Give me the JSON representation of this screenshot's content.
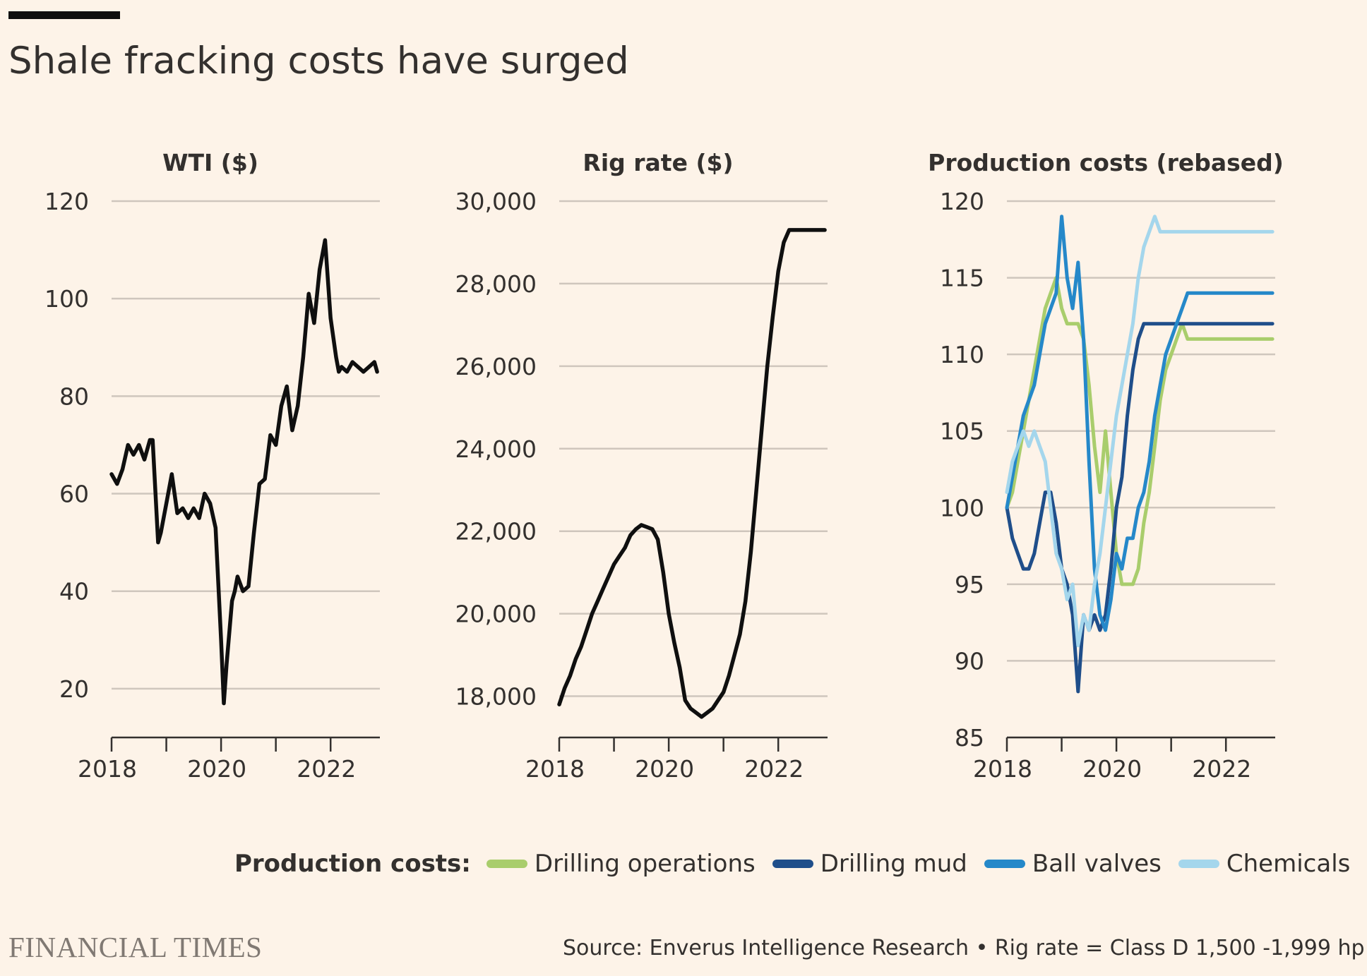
{
  "title": "Shale fracking costs have surged",
  "legend": {
    "label": "Production costs:",
    "items": [
      {
        "name": "Drilling operations",
        "color": "#a9cd6c"
      },
      {
        "name": "Drilling mud",
        "color": "#1f4e8a"
      },
      {
        "name": "Ball valves",
        "color": "#2588c9"
      },
      {
        "name": "Chemicals",
        "color": "#a4d6ec"
      }
    ]
  },
  "source": "Source: Enverus Intelligence Research • Rig rate = Class D 1,500 -1,999 hp",
  "brand": "FINANCIAL TIMES",
  "chart_data": [
    {
      "type": "line",
      "title": "WTI ($)",
      "ylim": [
        10,
        120
      ],
      "yticks": [
        20,
        40,
        60,
        80,
        100,
        120
      ],
      "ytick_labels": [
        "20",
        "40",
        "60",
        "80",
        "100",
        "120"
      ],
      "xlim": [
        2018,
        2022.9
      ],
      "xticks": [
        2018,
        2020,
        2022
      ],
      "xtick_labels": [
        "2018",
        "2020",
        "2022"
      ],
      "minor_xticks": [
        2019,
        2021
      ],
      "series": [
        {
          "name": "WTI",
          "color": "#0f0f0f",
          "x": [
            2018.0,
            2018.1,
            2018.2,
            2018.3,
            2018.4,
            2018.5,
            2018.6,
            2018.7,
            2018.75,
            2018.85,
            2018.9,
            2019.0,
            2019.1,
            2019.2,
            2019.3,
            2019.4,
            2019.5,
            2019.6,
            2019.7,
            2019.8,
            2019.9,
            2020.0,
            2020.05,
            2020.1,
            2020.2,
            2020.25,
            2020.3,
            2020.4,
            2020.5,
            2020.6,
            2020.7,
            2020.8,
            2020.9,
            2021.0,
            2021.1,
            2021.2,
            2021.3,
            2021.4,
            2021.5,
            2021.6,
            2021.7,
            2021.8,
            2021.9,
            2022.0,
            2022.1,
            2022.15,
            2022.2,
            2022.3,
            2022.4,
            2022.5,
            2022.6,
            2022.7,
            2022.8,
            2022.85
          ],
          "y": [
            64,
            62,
            65,
            70,
            68,
            70,
            67,
            71,
            71,
            50,
            52,
            58,
            64,
            56,
            57,
            55,
            57,
            55,
            60,
            58,
            53,
            30,
            17,
            25,
            38,
            40,
            43,
            40,
            41,
            52,
            62,
            63,
            72,
            70,
            78,
            82,
            73,
            78,
            88,
            101,
            95,
            106,
            112,
            96,
            88,
            85,
            86,
            85,
            87,
            86,
            85,
            86,
            87,
            85
          ]
        }
      ]
    },
    {
      "type": "line",
      "title": "Rig rate ($)",
      "ylim": [
        17000,
        30000
      ],
      "yticks": [
        18000,
        20000,
        22000,
        24000,
        26000,
        28000,
        30000
      ],
      "ytick_labels": [
        "18,000",
        "20,000",
        "22,000",
        "24,000",
        "26,000",
        "28,000",
        "30,000"
      ],
      "xlim": [
        2018,
        2022.9
      ],
      "xticks": [
        2018,
        2020,
        2022
      ],
      "xtick_labels": [
        "2018",
        "2020",
        "2022"
      ],
      "minor_xticks": [
        2019,
        2021
      ],
      "series": [
        {
          "name": "Rig rate",
          "color": "#0f0f0f",
          "x": [
            2018.0,
            2018.1,
            2018.2,
            2018.3,
            2018.4,
            2018.5,
            2018.6,
            2018.7,
            2018.8,
            2018.9,
            2019.0,
            2019.1,
            2019.2,
            2019.3,
            2019.4,
            2019.5,
            2019.6,
            2019.7,
            2019.8,
            2019.9,
            2020.0,
            2020.1,
            2020.2,
            2020.3,
            2020.4,
            2020.5,
            2020.6,
            2020.7,
            2020.8,
            2020.9,
            2021.0,
            2021.1,
            2021.2,
            2021.3,
            2021.4,
            2021.5,
            2021.6,
            2021.7,
            2021.8,
            2021.9,
            2022.0,
            2022.1,
            2022.2,
            2022.3,
            2022.4,
            2022.5,
            2022.6,
            2022.7,
            2022.8,
            2022.85
          ],
          "y": [
            17800,
            18200,
            18500,
            18900,
            19200,
            19600,
            20000,
            20300,
            20600,
            20900,
            21200,
            21400,
            21600,
            21900,
            22050,
            22150,
            22100,
            22050,
            21800,
            21000,
            20000,
            19300,
            18700,
            17900,
            17700,
            17600,
            17500,
            17600,
            17700,
            17900,
            18100,
            18500,
            19000,
            19500,
            20300,
            21500,
            23000,
            24500,
            26000,
            27200,
            28300,
            29000,
            29300,
            29300,
            29300,
            29300,
            29300,
            29300,
            29300,
            29300
          ]
        }
      ]
    },
    {
      "type": "line",
      "title": "Production costs (rebased)",
      "ylim": [
        85,
        120
      ],
      "yticks": [
        85,
        90,
        95,
        100,
        105,
        110,
        115,
        120
      ],
      "ytick_labels": [
        "85",
        "90",
        "95",
        "100",
        "105",
        "110",
        "115",
        "120"
      ],
      "xlim": [
        2018,
        2022.9
      ],
      "xticks": [
        2018,
        2020,
        2022
      ],
      "xtick_labels": [
        "2018",
        "2020",
        "2022"
      ],
      "minor_xticks": [
        2019,
        2021
      ],
      "series": [
        {
          "name": "Drilling operations",
          "color": "#a9cd6c",
          "x": [
            2018.0,
            2018.1,
            2018.2,
            2018.3,
            2018.4,
            2018.5,
            2018.6,
            2018.7,
            2018.8,
            2018.9,
            2019.0,
            2019.1,
            2019.2,
            2019.3,
            2019.4,
            2019.5,
            2019.6,
            2019.7,
            2019.8,
            2019.9,
            2020.0,
            2020.1,
            2020.2,
            2020.3,
            2020.4,
            2020.5,
            2020.6,
            2020.7,
            2020.8,
            2020.9,
            2021.0,
            2021.1,
            2021.2,
            2021.3,
            2021.4,
            2021.5,
            2021.6,
            2021.7,
            2021.8,
            2021.9,
            2022.0,
            2022.1,
            2022.2,
            2022.3,
            2022.4,
            2022.5,
            2022.6,
            2022.7,
            2022.8,
            2022.85
          ],
          "y": [
            100,
            101,
            103,
            105,
            107,
            109,
            111,
            113,
            114,
            115,
            113,
            112,
            112,
            112,
            111,
            108,
            104,
            101,
            105,
            101,
            97,
            95,
            95,
            95,
            96,
            99,
            101,
            104,
            107,
            109,
            110,
            111,
            112,
            111,
            111,
            111,
            111,
            111,
            111,
            111,
            111,
            111,
            111,
            111,
            111,
            111,
            111,
            111,
            111,
            111
          ]
        },
        {
          "name": "Drilling mud",
          "color": "#1f4e8a",
          "x": [
            2018.0,
            2018.1,
            2018.2,
            2018.3,
            2018.4,
            2018.5,
            2018.6,
            2018.7,
            2018.8,
            2018.9,
            2019.0,
            2019.1,
            2019.2,
            2019.3,
            2019.4,
            2019.5,
            2019.6,
            2019.7,
            2019.8,
            2019.9,
            2020.0,
            2020.1,
            2020.2,
            2020.3,
            2020.4,
            2020.5,
            2020.6,
            2020.7,
            2020.8,
            2020.9,
            2021.0,
            2021.1,
            2021.2,
            2021.3,
            2021.4,
            2021.5,
            2021.6,
            2021.7,
            2021.8,
            2021.9,
            2022.0,
            2022.1,
            2022.2,
            2022.3,
            2022.4,
            2022.5,
            2022.6,
            2022.7,
            2022.8,
            2022.85
          ],
          "y": [
            100,
            98,
            97,
            96,
            96,
            97,
            99,
            101,
            101,
            99,
            96,
            95,
            93,
            88,
            93,
            92,
            93,
            92,
            93,
            96,
            100,
            102,
            106,
            109,
            111,
            112,
            112,
            112,
            112,
            112,
            112,
            112,
            112,
            112,
            112,
            112,
            112,
            112,
            112,
            112,
            112,
            112,
            112,
            112,
            112,
            112,
            112,
            112,
            112,
            112
          ]
        },
        {
          "name": "Ball valves",
          "color": "#2588c9",
          "x": [
            2018.0,
            2018.1,
            2018.2,
            2018.3,
            2018.4,
            2018.5,
            2018.6,
            2018.7,
            2018.8,
            2018.9,
            2019.0,
            2019.1,
            2019.2,
            2019.3,
            2019.4,
            2019.5,
            2019.6,
            2019.7,
            2019.8,
            2019.9,
            2020.0,
            2020.1,
            2020.2,
            2020.3,
            2020.4,
            2020.5,
            2020.6,
            2020.7,
            2020.8,
            2020.9,
            2021.0,
            2021.1,
            2021.2,
            2021.3,
            2021.4,
            2021.5,
            2021.6,
            2021.7,
            2021.8,
            2021.9,
            2022.0,
            2022.1,
            2022.2,
            2022.3,
            2022.4,
            2022.5,
            2022.6,
            2022.7,
            2022.8,
            2022.85
          ],
          "y": [
            100,
            102,
            104,
            106,
            107,
            108,
            110,
            112,
            113,
            114,
            119,
            115,
            113,
            116,
            111,
            103,
            96,
            93,
            92,
            94,
            97,
            96,
            98,
            98,
            100,
            101,
            103,
            106,
            108,
            110,
            111,
            112,
            113,
            114,
            114,
            114,
            114,
            114,
            114,
            114,
            114,
            114,
            114,
            114,
            114,
            114,
            114,
            114,
            114,
            114
          ]
        },
        {
          "name": "Chemicals",
          "color": "#a4d6ec",
          "x": [
            2018.0,
            2018.1,
            2018.2,
            2018.3,
            2018.4,
            2018.5,
            2018.6,
            2018.7,
            2018.8,
            2018.9,
            2019.0,
            2019.1,
            2019.2,
            2019.3,
            2019.4,
            2019.5,
            2019.6,
            2019.7,
            2019.8,
            2019.9,
            2020.0,
            2020.1,
            2020.2,
            2020.3,
            2020.4,
            2020.5,
            2020.6,
            2020.7,
            2020.8,
            2020.9,
            2021.0,
            2021.1,
            2021.2,
            2021.3,
            2021.4,
            2021.5,
            2021.6,
            2021.7,
            2021.8,
            2021.9,
            2022.0,
            2022.1,
            2022.2,
            2022.3,
            2022.4,
            2022.5,
            2022.6,
            2022.7,
            2022.8,
            2022.85
          ],
          "y": [
            101,
            103,
            104,
            105,
            104,
            105,
            104,
            103,
            100,
            97,
            96,
            94,
            95,
            91,
            93,
            92,
            95,
            97,
            100,
            103,
            106,
            108,
            110,
            112,
            115,
            117,
            118,
            119,
            118,
            118,
            118,
            118,
            118,
            118,
            118,
            118,
            118,
            118,
            118,
            118,
            118,
            118,
            118,
            118,
            118,
            118,
            118,
            118,
            118,
            118
          ]
        }
      ]
    }
  ]
}
